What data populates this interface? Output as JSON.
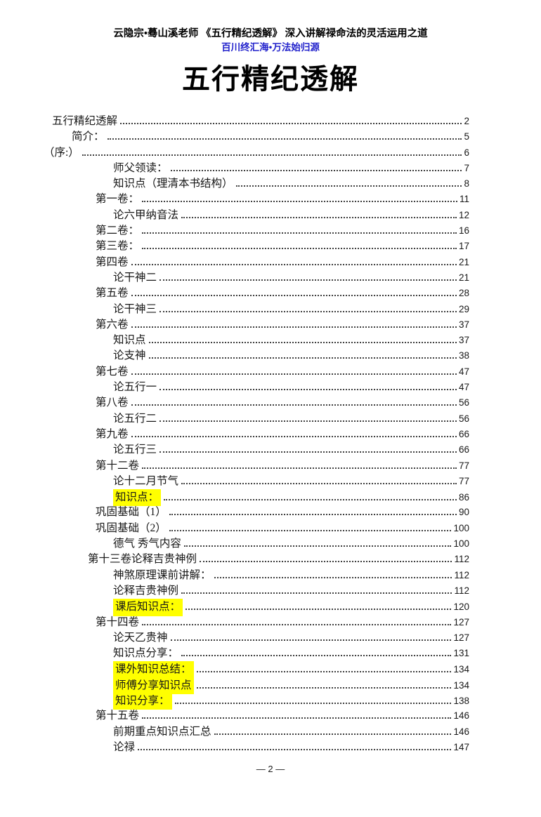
{
  "header": {
    "line1": "云隐宗•蓦山溪老师 《五行精纪透解》 深入讲解禄命法的灵活运用之道",
    "line2": "百川终汇海•万法始归源",
    "line2_color": "#2222CC"
  },
  "title": "五行精纪透解",
  "toc": {
    "highlight_color": "#FFFF00",
    "entries": [
      {
        "label": "五行精纪透解",
        "page": "2",
        "level": "l0",
        "highlight": false
      },
      {
        "label": "简介：",
        "page": "5",
        "level": "l1",
        "highlight": false
      },
      {
        "label": "（序:）",
        "page": "6",
        "level": "lp",
        "highlight": false
      },
      {
        "label": "师父领读：",
        "page": "7",
        "level": "l3",
        "highlight": false
      },
      {
        "label": "知识点（理清本书结构）",
        "page": "8",
        "level": "l3",
        "highlight": false
      },
      {
        "label": "第一卷：",
        "page": "11",
        "level": "l2",
        "highlight": false
      },
      {
        "label": "论六甲纳音法",
        "page": "12",
        "level": "l3",
        "highlight": false
      },
      {
        "label": "第二卷：",
        "page": "16",
        "level": "l2",
        "highlight": false
      },
      {
        "label": "第三卷：",
        "page": "17",
        "level": "l2",
        "highlight": false
      },
      {
        "label": "第四卷",
        "page": "21",
        "level": "l2",
        "highlight": false
      },
      {
        "label": "论干神二",
        "page": "21",
        "level": "l3",
        "highlight": false
      },
      {
        "label": "第五卷",
        "page": "28",
        "level": "l2",
        "highlight": false
      },
      {
        "label": "论干神三",
        "page": "29",
        "level": "l3",
        "highlight": false
      },
      {
        "label": "第六卷",
        "page": "37",
        "level": "l2",
        "highlight": false
      },
      {
        "label": "知识点",
        "page": "37",
        "level": "l3",
        "highlight": false
      },
      {
        "label": "论支神",
        "page": "38",
        "level": "l3",
        "highlight": false
      },
      {
        "label": "第七卷",
        "page": "47",
        "level": "l2",
        "highlight": false
      },
      {
        "label": "论五行一",
        "page": "47",
        "level": "l3",
        "highlight": false
      },
      {
        "label": "第八卷",
        "page": "56",
        "level": "l2",
        "highlight": false
      },
      {
        "label": "论五行二",
        "page": "56",
        "level": "l3",
        "highlight": false
      },
      {
        "label": "第九卷",
        "page": "66",
        "level": "l2",
        "highlight": false
      },
      {
        "label": "论五行三",
        "page": "66",
        "level": "l3",
        "highlight": false
      },
      {
        "label": "第十二卷",
        "page": "77",
        "level": "l2",
        "highlight": false
      },
      {
        "label": "论十二月节气",
        "page": "77",
        "level": "l3",
        "highlight": false
      },
      {
        "label": "知识点：",
        "page": "86",
        "level": "l3",
        "highlight": true
      },
      {
        "label": "巩固基础（1）",
        "page": "90",
        "level": "l2",
        "highlight": false
      },
      {
        "label": "巩固基础（2）",
        "page": "100",
        "level": "l2",
        "highlight": false
      },
      {
        "label": "德气 秀气内容",
        "page": "100",
        "level": "l3",
        "highlight": false
      },
      {
        "label": "第十三卷论释吉贵神例",
        "page": "112",
        "level": "l2b",
        "highlight": false
      },
      {
        "label": "神煞原理课前讲解：",
        "page": "112",
        "level": "l3",
        "highlight": false
      },
      {
        "label": "论释吉贵神例",
        "page": "112",
        "level": "l3",
        "highlight": false
      },
      {
        "label": "课后知识点：",
        "page": "120",
        "level": "l3",
        "highlight": true
      },
      {
        "label": "第十四卷",
        "page": "127",
        "level": "l2",
        "highlight": false
      },
      {
        "label": "论天乙贵神",
        "page": "127",
        "level": "l3",
        "highlight": false
      },
      {
        "label": "知识点分享：",
        "page": "131",
        "level": "l3",
        "highlight": false
      },
      {
        "label": "课外知识总结：",
        "page": "134",
        "level": "l3",
        "highlight": true
      },
      {
        "label": "师傅分享知识点",
        "page": "134",
        "level": "l3",
        "highlight": true
      },
      {
        "label": "知识分享：",
        "page": "138",
        "level": "l3",
        "highlight": true
      },
      {
        "label": "第十五卷",
        "page": "146",
        "level": "l2",
        "highlight": false
      },
      {
        "label": "前期重点知识点汇总",
        "page": "146",
        "level": "l3",
        "highlight": false
      },
      {
        "label": "论禄",
        "page": "147",
        "level": "l3",
        "highlight": false
      }
    ]
  },
  "footer": {
    "page_label": "— 2 —"
  }
}
